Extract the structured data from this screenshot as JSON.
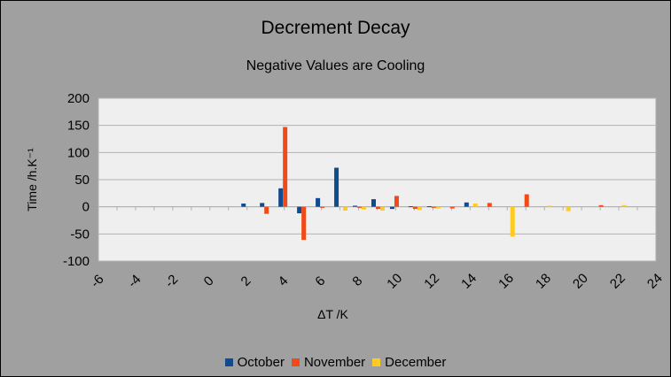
{
  "chart_data": {
    "type": "bar",
    "title": "Decrement Decay",
    "subtitle": "Negative Values are Cooling",
    "xlabel": "ΔT /K",
    "ylabel": "Time /h.K⁻¹",
    "xlim": [
      -6,
      24
    ],
    "ylim": [
      -100,
      200
    ],
    "x_ticks": [
      "-6",
      "-4",
      "-2",
      "0",
      "2",
      "4",
      "6",
      "8",
      "10",
      "12",
      "14",
      "16",
      "18",
      "20",
      "22",
      "24"
    ],
    "y_ticks": [
      "200",
      "150",
      "100",
      "50",
      "0",
      "-50",
      "-100"
    ],
    "legend_position": "bottom",
    "grid": true,
    "categories": [
      2,
      3,
      4,
      5,
      6,
      7,
      8,
      9,
      10,
      11,
      12,
      13,
      14,
      15,
      16,
      17,
      18,
      19,
      20,
      21,
      22
    ],
    "series": [
      {
        "name": "October",
        "color": "#0f4b8f",
        "values": [
          6,
          7,
          34,
          -12,
          16,
          72,
          2,
          14,
          -4,
          1,
          1,
          0,
          8,
          0,
          0,
          0,
          0,
          0,
          0,
          0,
          0
        ]
      },
      {
        "name": "November",
        "color": "#f04a18",
        "values": [
          0,
          -13,
          147,
          -61,
          -2,
          0,
          -2,
          -4,
          20,
          -4,
          -2,
          -3,
          0,
          7,
          0,
          23,
          0,
          0,
          0,
          3,
          0
        ]
      },
      {
        "name": "December",
        "color": "#fecb22",
        "values": [
          0,
          0,
          0,
          0,
          0,
          -7,
          -5,
          -7,
          0,
          -6,
          -3,
          0,
          6,
          0,
          -55,
          0,
          2,
          -8,
          0,
          0,
          3
        ]
      }
    ]
  }
}
